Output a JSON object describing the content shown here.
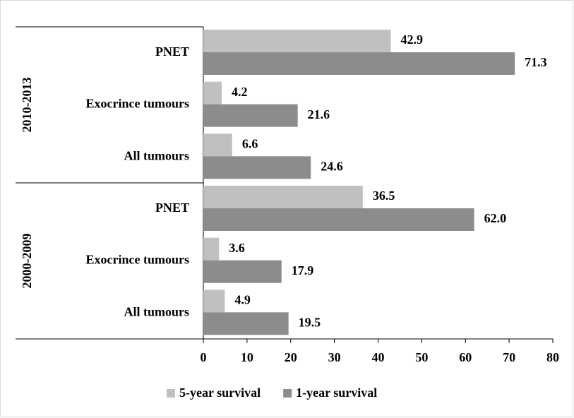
{
  "chart_data": {
    "type": "bar",
    "orientation": "horizontal",
    "categories": [
      "PNET",
      "Exocrince tumours",
      "All tumours",
      "PNET",
      "Exocrince tumours",
      "All tumours"
    ],
    "category_groups": [
      "2010-2013",
      "2010-2013",
      "2010-2013",
      "2000-2009",
      "2000-2009",
      "2000-2009"
    ],
    "series": [
      {
        "name": "5-year survival",
        "color": "#c0c0c0",
        "values": [
          42.9,
          4.2,
          6.6,
          36.5,
          3.6,
          4.9
        ],
        "value_labels": [
          "42.9",
          "4.2",
          "6.6",
          "36.5",
          "3.6",
          "4.9"
        ]
      },
      {
        "name": "1-year survival",
        "color": "#8c8c8c",
        "values": [
          71.3,
          21.6,
          24.6,
          62.0,
          17.9,
          19.5
        ],
        "value_labels": [
          "71.3",
          "21.6",
          "24.6",
          "62.0",
          "17.9",
          "19.5"
        ]
      }
    ],
    "xlim": [
      0,
      80
    ],
    "xticks": [
      0,
      10,
      20,
      30,
      40,
      50,
      60,
      70,
      80
    ],
    "grid": false,
    "legend": "bottom"
  }
}
